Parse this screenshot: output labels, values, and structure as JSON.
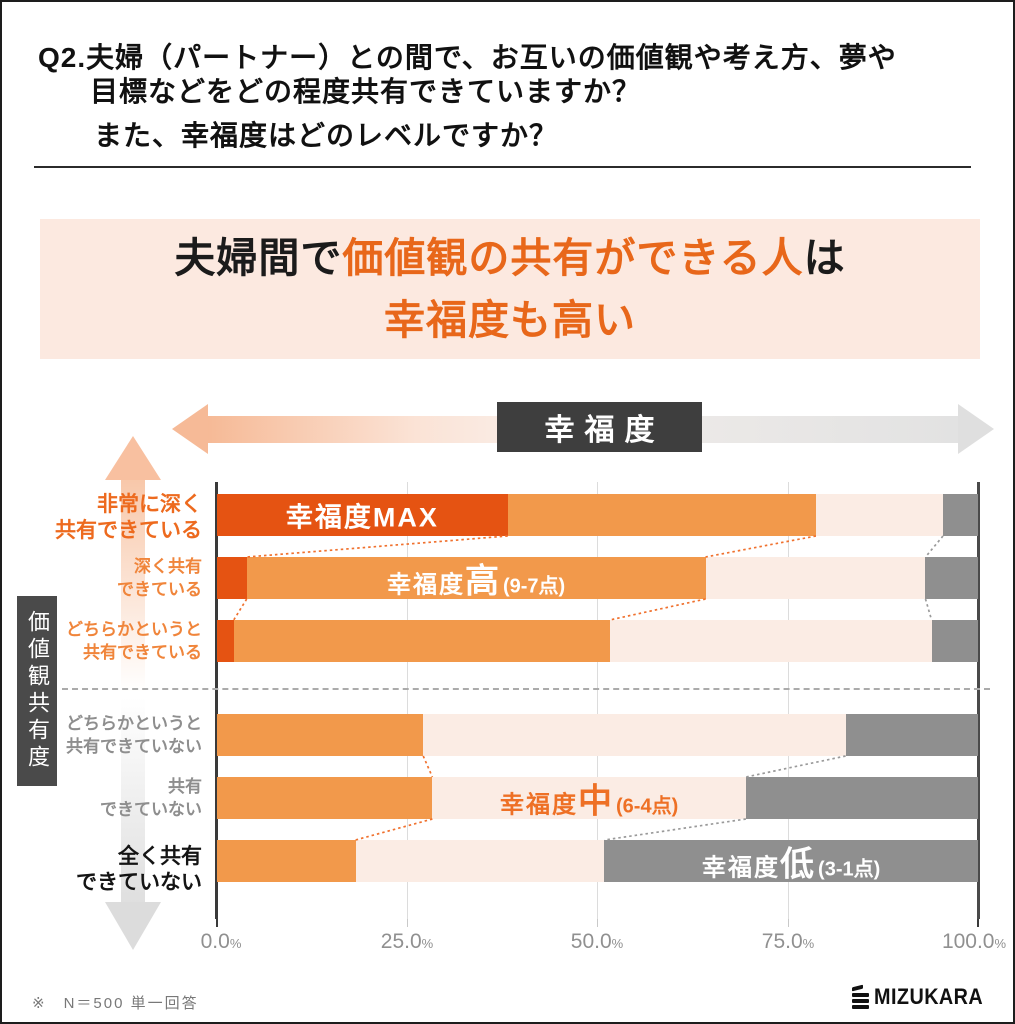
{
  "question": {
    "line1": "Q2.夫婦（パートナー）との間で、お互いの価値観や考え方、夢や",
    "line2": "目標などをどの程度共有できていますか？",
    "line3": "また、幸福度はどのレベルですか？"
  },
  "headline": {
    "part1": "夫婦間で",
    "part2": "価値観の共有ができる人",
    "part3": "は",
    "part4": "幸福度も高い"
  },
  "arrow_label": "幸福度",
  "y_axis_label": "価値観共有度",
  "x_axis": {
    "ticks": [
      "0.0",
      "25.0",
      "50.0",
      "75.0",
      "100.0"
    ],
    "suffix": "%"
  },
  "footer": {
    "note": "※　N＝500 単一回答",
    "brand": "MIZUKARA"
  },
  "colors": {
    "dark_orange": "#E55312",
    "mid_orange": "#F2994B",
    "light_pink": "#FBECE4",
    "gray": "#8F8F8F",
    "accent_orange": "#E8671A",
    "connector_orange": "#F0712E",
    "connector_gray": "#9A9A9A"
  },
  "chart_data": {
    "type": "bar",
    "orientation": "horizontal-stacked",
    "unit": "%",
    "xlim": [
      0,
      100
    ],
    "x_ticks": [
      0,
      25,
      50,
      75,
      100
    ],
    "grid": true,
    "series_names": [
      "幸福度MAX",
      "幸福度高(9-7点)",
      "幸福度中(6-4点)",
      "幸福度低(3-1点)"
    ],
    "series_colors": [
      "#E55312",
      "#F2994B",
      "#FBECE4",
      "#8F8F8F"
    ],
    "rows": [
      {
        "category": "非常に深く共有できている",
        "label_lines": [
          "非常に深く",
          "共有できている"
        ],
        "style": "strong-orange",
        "values": [
          38.2,
          40.5,
          16.7,
          4.6
        ]
      },
      {
        "category": "深く共有できている",
        "label_lines": [
          "深く共有",
          "できている"
        ],
        "style": "orange",
        "values": [
          3.9,
          60.3,
          28.9,
          6.9
        ]
      },
      {
        "category": "どちらかというと共有できている",
        "label_lines": [
          "どちらかというと",
          "共有できている"
        ],
        "style": "orange",
        "values": [
          2.2,
          49.4,
          42.3,
          6.1
        ]
      },
      {
        "category": "どちらかというと共有できていない",
        "label_lines": [
          "どちらかというと",
          "共有できていない"
        ],
        "style": "gray",
        "values": [
          0,
          27.1,
          55.5,
          17.4
        ]
      },
      {
        "category": "共有できていない",
        "label_lines": [
          "共有",
          "できていない"
        ],
        "style": "gray",
        "values": [
          0,
          28.3,
          41.2,
          30.5
        ]
      },
      {
        "category": "全く共有できていない",
        "label_lines": [
          "全く共有",
          "できていない"
        ],
        "style": "strong-black",
        "values": [
          0,
          18.2,
          32.7,
          49.1
        ]
      }
    ],
    "segment_labels": [
      {
        "row": 0,
        "segment": 0,
        "color": "#FFFFFF",
        "parts": [
          {
            "text": "幸福度MAX",
            "size": "max"
          }
        ]
      },
      {
        "row": 1,
        "segment": 1,
        "color": "#FFFFFF",
        "parts": [
          {
            "text": "幸福度",
            "size": "md"
          },
          {
            "text": "高",
            "size": "lg"
          },
          {
            "text": "(9-7点)",
            "size": "sm"
          }
        ]
      },
      {
        "row": 4,
        "segment": 2,
        "color": "#EE7025",
        "parts": [
          {
            "text": "幸福度",
            "size": "md"
          },
          {
            "text": "中",
            "size": "lg"
          },
          {
            "text": "(6-4点)",
            "size": "sm"
          }
        ]
      },
      {
        "row": 5,
        "segment": 3,
        "color": "#FFFFFF",
        "parts": [
          {
            "text": "幸福度",
            "size": "md"
          },
          {
            "text": "低",
            "size": "lg"
          },
          {
            "text": "(3-1点)",
            "size": "sm"
          }
        ]
      }
    ],
    "connectors": [
      {
        "from_row": 0,
        "to_row": 1,
        "after_segments": 1,
        "color": "orange"
      },
      {
        "from_row": 0,
        "to_row": 1,
        "after_segments": 2,
        "color": "orange"
      },
      {
        "from_row": 0,
        "to_row": 1,
        "after_segments": 3,
        "color": "gray"
      },
      {
        "from_row": 1,
        "to_row": 2,
        "after_segments": 1,
        "color": "orange"
      },
      {
        "from_row": 1,
        "to_row": 2,
        "after_segments": 2,
        "color": "orange"
      },
      {
        "from_row": 1,
        "to_row": 2,
        "after_segments": 3,
        "color": "gray"
      },
      {
        "from_row": 3,
        "to_row": 4,
        "after_segments": 2,
        "color": "orange"
      },
      {
        "from_row": 3,
        "to_row": 4,
        "after_segments": 3,
        "color": "gray"
      },
      {
        "from_row": 4,
        "to_row": 5,
        "after_segments": 2,
        "color": "orange"
      },
      {
        "from_row": 4,
        "to_row": 5,
        "after_segments": 3,
        "color": "gray"
      }
    ]
  }
}
